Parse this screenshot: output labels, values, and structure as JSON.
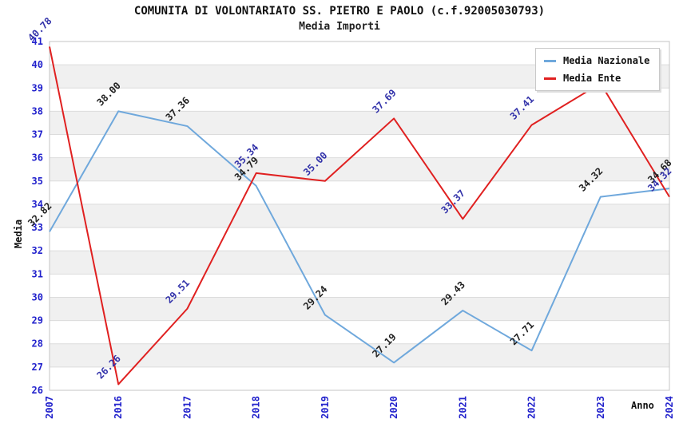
{
  "title": "COMUNITA DI VOLONTARIATO SS. PIETRO E PAOLO (c.f.92005030793)",
  "subtitle": "Media Importi",
  "legend": {
    "position": "top-right",
    "items": [
      {
        "label": "Media Nazionale",
        "color": "#6FA8DC"
      },
      {
        "label": "Media Ente",
        "color": "#E02020"
      }
    ]
  },
  "axes": {
    "y_title": "Media",
    "x_title": "Anno",
    "tick_color": "#2222CC",
    "axis_title_color": "#111111",
    "y_ticks": [
      26,
      27,
      28,
      29,
      30,
      31,
      32,
      33,
      34,
      35,
      36,
      37,
      38,
      39,
      40,
      41
    ],
    "x_ticks": [
      "2007",
      "2016",
      "2017",
      "2018",
      "2019",
      "2020",
      "2021",
      "2022",
      "2023",
      "2024"
    ]
  },
  "colors": {
    "band_gray": "#F0F0F0",
    "grid": "#DCDCDC",
    "border": "#C4C4C4"
  },
  "chart_data": {
    "type": "line",
    "title": "COMUNITA DI VOLONTARIATO SS. PIETRO E PAOLO (c.f.92005030793)",
    "subtitle": "Media Importi",
    "xlabel": "Anno",
    "ylabel": "Media",
    "ylim": [
      26,
      41
    ],
    "grid": "horizontal-bands",
    "legend_position": "top-right",
    "categories": [
      "2007",
      "2016",
      "2017",
      "2018",
      "2019",
      "2020",
      "2021",
      "2022",
      "2023",
      "2024"
    ],
    "series": [
      {
        "name": "Media Nazionale",
        "color": "#6FA8DC",
        "label_color": "#222222",
        "values": [
          32.82,
          38.0,
          37.36,
          34.79,
          29.24,
          27.19,
          29.43,
          27.71,
          34.32,
          34.68
        ],
        "labels": [
          "32.82",
          "38.00",
          "37.36",
          "34.79",
          "29.24",
          "27.19",
          "29.43",
          "27.71",
          "34.32",
          "34.68"
        ]
      },
      {
        "name": "Media Ente",
        "color": "#E02020",
        "label_color": "#3333AA",
        "values": [
          40.78,
          26.26,
          29.51,
          35.34,
          35.0,
          37.69,
          33.37,
          37.41,
          39.2,
          34.32
        ],
        "labels": [
          "40.78",
          "26.26",
          "29.51",
          "35.34",
          "35.00",
          "37.69",
          "33.37",
          "37.41",
          null,
          "34.32"
        ]
      }
    ]
  }
}
